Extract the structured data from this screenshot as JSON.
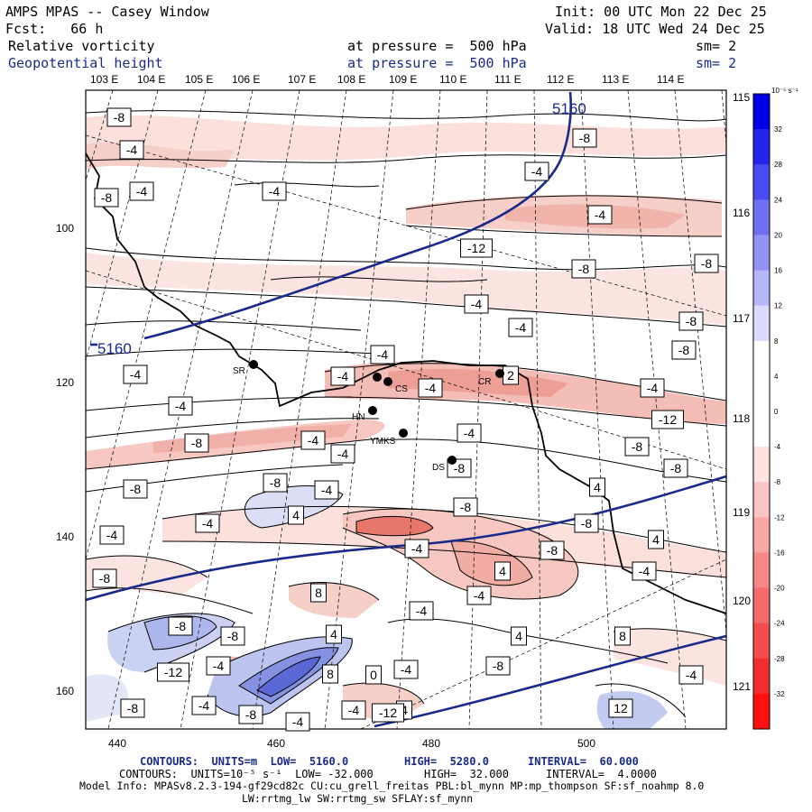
{
  "header": {
    "title": "AMPS MPAS -- Casey Window",
    "init": "Init: 00 UTC Mon 22 Dec 25",
    "forecast": "Fcst:   66 h",
    "valid": "Valid: 18 UTC Wed 24 Dec 25",
    "field1_name": "Relative vorticity",
    "field1_level": "at pressure =  500 hPa",
    "field1_sm": "sm= 2",
    "field2_name": "Geopotential height",
    "field2_level": "at pressure =  500 hPa",
    "field2_sm": "sm= 2"
  },
  "colors": {
    "height_contour": "#1a2a8c",
    "positive_max": "#0000ee",
    "negative_max": "#ff1010"
  },
  "axes": {
    "top_lon_labels": [
      "103 E",
      "104 E",
      "105 E",
      "106 E",
      "107 E",
      "108 E",
      "109 E",
      "110 E",
      "111 E",
      "112 E",
      "113 E",
      "114 E"
    ],
    "right_lon_labels": [
      "115 E",
      "116 E",
      "117 E",
      "118 E",
      "119 E",
      "120 E",
      "121 E"
    ],
    "left_y_labels": [
      "100",
      "120",
      "140",
      "160"
    ],
    "bottom_x_labels": [
      "440",
      "460",
      "480",
      "500"
    ]
  },
  "colorbar": {
    "units": "10⁻⁵ s⁻¹",
    "levels": [
      "32",
      "28",
      "24",
      "20",
      "16",
      "12",
      "8",
      "4",
      "0",
      "-4",
      "-8",
      "-12",
      "-16",
      "-20",
      "-24",
      "-28",
      "-32"
    ]
  },
  "stations": [
    {
      "id": "SR",
      "label": "SR"
    },
    {
      "id": "CS",
      "label": "CS"
    },
    {
      "id": "CR",
      "label": "CR"
    },
    {
      "id": "HN",
      "label": "HN"
    },
    {
      "id": "YMKS",
      "label": "YMKS"
    },
    {
      "id": "DS",
      "label": "DS"
    }
  ],
  "height_contour_labels": [
    "5160",
    "5160"
  ],
  "vorticity_labels": [
    "-8",
    "-4",
    "-8",
    "-4",
    "-4",
    "-4",
    "-8",
    "-4",
    "-12",
    "-8",
    "-8",
    "-4",
    "-4",
    "-8",
    "-4",
    "-8",
    "-4",
    "-4",
    "-4",
    "-12",
    "-4",
    "-4",
    "-8",
    "-4",
    "-8",
    "-8",
    "-4",
    "-8",
    "-8",
    "-4",
    "4",
    "-8",
    "-4",
    "-4",
    "4",
    "-4",
    "4",
    "-8",
    "-4",
    "8",
    "-4",
    "-4",
    "-8",
    "-8",
    "-12",
    "-4",
    "-8",
    "-4",
    "-8",
    "-4",
    "4",
    "12",
    "4",
    "-4",
    "8",
    "4",
    "-8",
    "-8",
    "-4",
    "-8",
    "-4",
    "-4",
    "8",
    "4",
    "0",
    "-12",
    "-8",
    "2"
  ],
  "footer": {
    "line1_contours": "CONTOURS:  UNITS=m  LOW=  5160.0",
    "line1_high": "HIGH=  5280.0",
    "line1_interval": "INTERVAL=  60.000",
    "line2_contours": "CONTOURS:  UNITS=10⁻⁵ s⁻¹  LOW= -32.000",
    "line2_high": "HIGH=  32.000",
    "line2_interval": "INTERVAL=  4.0000",
    "model_info": "Model Info: MPASv8.2.3-194-gf29cd82c CU:cu_grell_freitas PBL:bl_mynn MP:mp_thompson SF:sf_noahmp 8.0",
    "model_info2": "LW:rrtmg_lw SW:rrtmg_sw SFLAY:sf_mynn"
  }
}
